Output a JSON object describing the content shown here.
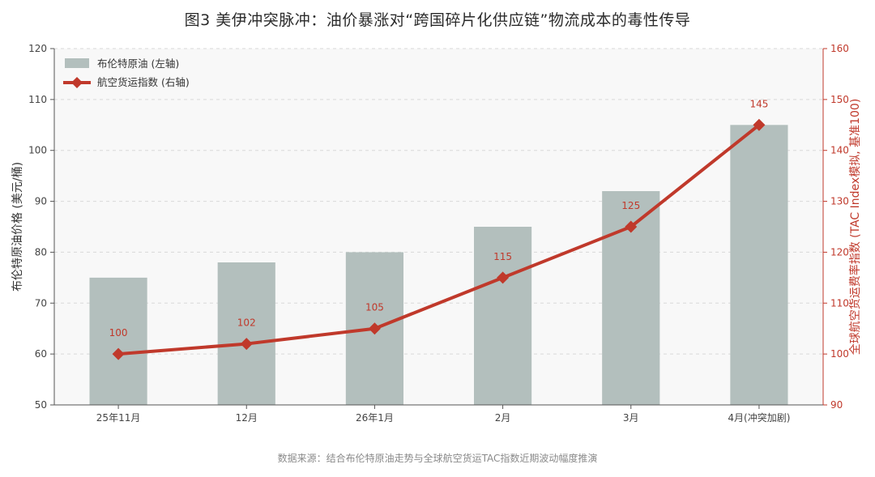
{
  "title": "图3 美伊冲突脉冲：油价暴涨对“跨国碎片化供应链”物流成本的毒性传导",
  "source": "数据来源：结合布伦特原油走势与全球航空货运TAC指数近期波动幅度推演",
  "colors": {
    "bar": "#b3bfbd",
    "line": "#c0392b",
    "right_axis": "#c0392b",
    "plot_bg": "#f8f8f8"
  },
  "chart_data": {
    "type": "bar",
    "categories": [
      "25年11月",
      "12月",
      "26年1月",
      "2月",
      "3月",
      "4月(冲突加剧)"
    ],
    "series": [
      {
        "name": "布伦特原油 (左轴)",
        "type": "bar",
        "axis": "left",
        "values": [
          75,
          78,
          80,
          85,
          92,
          105
        ]
      },
      {
        "name": "航空货运指数 (右轴)",
        "type": "line",
        "axis": "right",
        "values": [
          100,
          102,
          105,
          115,
          125,
          145
        ]
      }
    ],
    "ylabel": "布伦特原油价格 (美元/桶)",
    "ylabel_right": "全球航空货运费率指数 (TAC Index模拟, 基准100)",
    "ylim": [
      50,
      120
    ],
    "ylim_right": [
      90,
      160
    ],
    "yticks": [
      50,
      60,
      70,
      80,
      90,
      100,
      110,
      120
    ],
    "yticks_right": [
      90,
      100,
      110,
      120,
      130,
      140,
      150,
      160
    ],
    "grid": true,
    "legend_position": "top-left"
  }
}
